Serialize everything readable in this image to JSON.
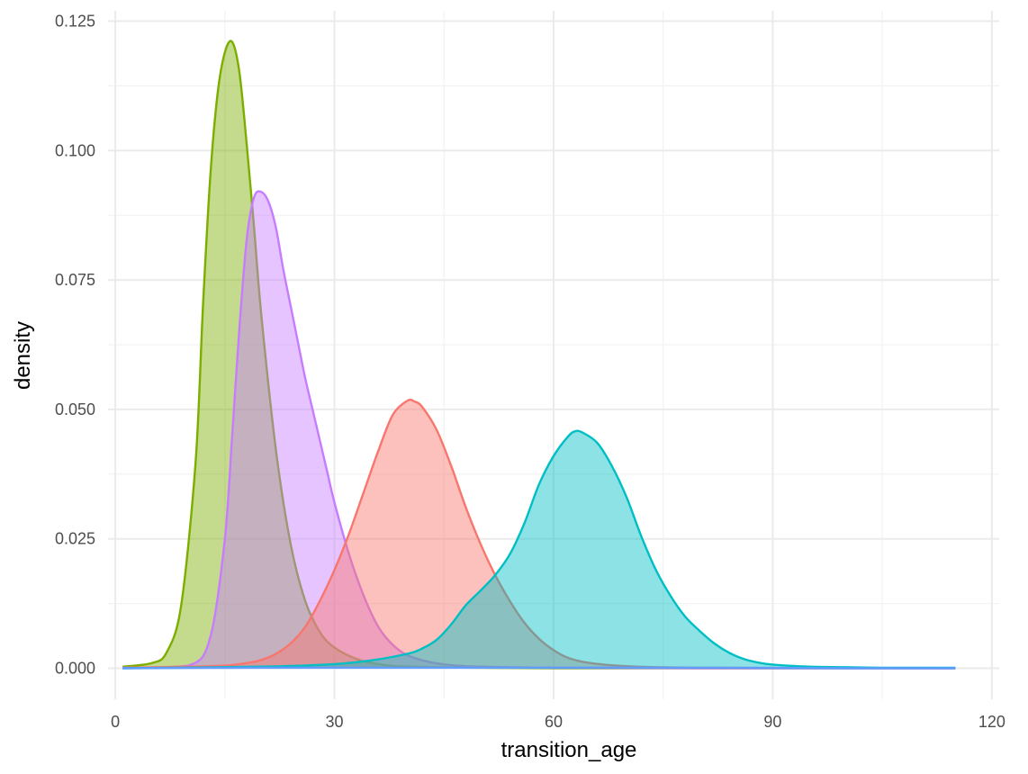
{
  "chart_data": {
    "type": "area",
    "xlabel": "transition_age",
    "ylabel": "density",
    "xlim": [
      -1,
      121
    ],
    "ylim": [
      -0.006,
      0.127
    ],
    "x_ticks": [
      0,
      30,
      60,
      90,
      120
    ],
    "x_tick_labels": [
      "0",
      "30",
      "60",
      "90",
      "120"
    ],
    "y_ticks": [
      0.0,
      0.025,
      0.05,
      0.075,
      0.1,
      0.125
    ],
    "y_tick_labels": [
      "0.000",
      "0.025",
      "0.050",
      "0.075",
      "0.100",
      "0.125"
    ],
    "grid": true,
    "legend": "none",
    "series": [
      {
        "color": "#7CAE00",
        "x": [
          1,
          5,
          7,
          9,
          11,
          12,
          13,
          14,
          15,
          16,
          17,
          18,
          19,
          20,
          22,
          24,
          26,
          28,
          30,
          33,
          36,
          40,
          50,
          60,
          80,
          115
        ],
        "y": [
          0.0003,
          0.001,
          0.003,
          0.012,
          0.04,
          0.07,
          0.095,
          0.111,
          0.119,
          0.121,
          0.115,
          0.101,
          0.085,
          0.068,
          0.042,
          0.024,
          0.013,
          0.007,
          0.004,
          0.0018,
          0.0008,
          0.0003,
          0.0001,
          0.0,
          0.0,
          0.0
        ]
      },
      {
        "color": "#C77CFF",
        "x": [
          1,
          10,
          13,
          15,
          16,
          17,
          18,
          19,
          20,
          21,
          22,
          23,
          24,
          25,
          26,
          27,
          28,
          29,
          30,
          32,
          34,
          36,
          38,
          40,
          43,
          46,
          50,
          60,
          80,
          115
        ],
        "y": [
          0.0001,
          0.0005,
          0.006,
          0.025,
          0.045,
          0.066,
          0.083,
          0.091,
          0.092,
          0.09,
          0.085,
          0.077,
          0.07,
          0.063,
          0.056,
          0.05,
          0.044,
          0.038,
          0.032,
          0.022,
          0.014,
          0.008,
          0.0045,
          0.0025,
          0.0012,
          0.0006,
          0.0003,
          0.0001,
          0.0,
          0.0
        ]
      },
      {
        "color": "#F8766D",
        "x": [
          1,
          10,
          15,
          18,
          20,
          22,
          24,
          26,
          28,
          30,
          32,
          34,
          36,
          38,
          40,
          41,
          42,
          44,
          46,
          48,
          50,
          52,
          54,
          56,
          58,
          60,
          62,
          65,
          70,
          80,
          115
        ],
        "y": [
          0.0001,
          0.0003,
          0.0005,
          0.001,
          0.0016,
          0.0028,
          0.0048,
          0.008,
          0.013,
          0.019,
          0.026,
          0.034,
          0.042,
          0.049,
          0.0517,
          0.0515,
          0.0505,
          0.046,
          0.039,
          0.031,
          0.024,
          0.018,
          0.013,
          0.0088,
          0.0057,
          0.0035,
          0.002,
          0.001,
          0.0004,
          0.0001,
          0.0
        ]
      },
      {
        "color": "#00BFC4",
        "x": [
          1,
          20,
          30,
          35,
          40,
          42,
          44,
          46,
          48,
          50,
          52,
          54,
          56,
          58,
          60,
          62,
          63,
          64,
          66,
          68,
          70,
          72,
          74,
          76,
          78,
          80,
          82,
          84,
          86,
          88,
          90,
          95,
          100,
          105,
          110,
          115
        ],
        "y": [
          0.0,
          0.0003,
          0.0008,
          0.0015,
          0.0028,
          0.0038,
          0.0055,
          0.0085,
          0.0122,
          0.015,
          0.018,
          0.022,
          0.028,
          0.0355,
          0.041,
          0.0448,
          0.0458,
          0.0455,
          0.0435,
          0.039,
          0.033,
          0.0255,
          0.019,
          0.014,
          0.01,
          0.0072,
          0.0048,
          0.003,
          0.0018,
          0.0011,
          0.0007,
          0.0003,
          0.0002,
          0.0001,
          0.0001,
          0.0001
        ]
      },
      {
        "color": "#619CFF",
        "x": [
          1,
          20,
          40,
          60,
          80,
          100,
          115
        ],
        "y": [
          0.0,
          0.0001,
          0.0001,
          0.0001,
          0.0001,
          0.0,
          0.0
        ]
      }
    ]
  }
}
